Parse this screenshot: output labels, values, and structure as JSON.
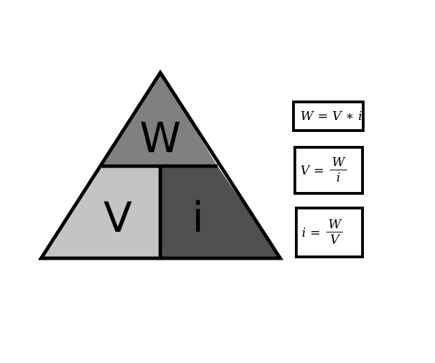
{
  "triangle": {
    "top_label": "W",
    "left_label": "V",
    "right_label": "i",
    "colors": {
      "top": "#808080",
      "left": "#c4c4c4",
      "right": "#505050",
      "stroke": "#000000"
    }
  },
  "formulas": {
    "power": {
      "lhs": "W",
      "op": "=",
      "a": "V",
      "star": "∗",
      "b": "i"
    },
    "voltage": {
      "lhs": "V",
      "op": "=",
      "num": "W",
      "den": "i"
    },
    "current": {
      "lhs": "i",
      "op": "=",
      "num": "W",
      "den": "V"
    }
  }
}
